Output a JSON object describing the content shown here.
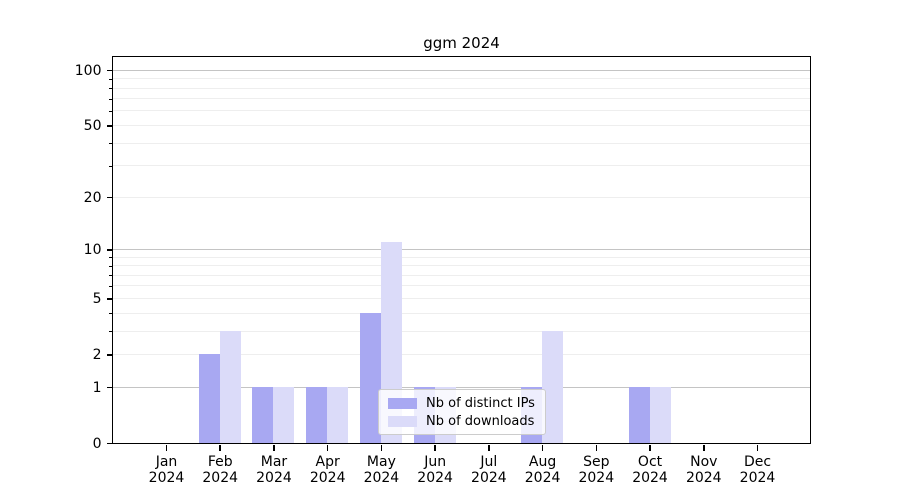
{
  "chart_data": {
    "type": "bar",
    "title": "ggm 2024",
    "x_tick_labels": [
      [
        "Jan",
        "2024"
      ],
      [
        "Feb",
        "2024"
      ],
      [
        "Mar",
        "2024"
      ],
      [
        "Apr",
        "2024"
      ],
      [
        "May",
        "2024"
      ],
      [
        "Jun",
        "2024"
      ],
      [
        "Jul",
        "2024"
      ],
      [
        "Aug",
        "2024"
      ],
      [
        "Sep",
        "2024"
      ],
      [
        "Oct",
        "2024"
      ],
      [
        "Nov",
        "2024"
      ],
      [
        "Dec",
        "2024"
      ]
    ],
    "series": [
      {
        "name": "Nb of distinct IPs",
        "color": "#a8a8f2",
        "values": [
          0,
          2,
          1,
          1,
          4,
          1,
          0,
          1,
          0,
          1,
          0,
          0
        ]
      },
      {
        "name": "Nb of downloads",
        "color": "#dbdbf9",
        "values": [
          0,
          3,
          1,
          1,
          11,
          1,
          0,
          3,
          0,
          1,
          0,
          0
        ]
      }
    ],
    "y_axis": {
      "scale": "log1p",
      "labeled_ticks": [
        0,
        1,
        2,
        5,
        10,
        20,
        50,
        100
      ],
      "major_gridlines": [
        1,
        10,
        100
      ],
      "minor_gridlines": [
        2,
        3,
        4,
        5,
        6,
        7,
        8,
        9,
        20,
        30,
        40,
        50,
        60,
        70,
        80,
        90
      ],
      "minor_axis_ticks": [
        3,
        4,
        6,
        7,
        8,
        9,
        30,
        40,
        60,
        70,
        80,
        90
      ],
      "ylim": [
        0,
        118
      ]
    },
    "grid": true,
    "legend_position": "bottom-center"
  },
  "colors": {
    "bar_distinct_ips": "#a8a8f2",
    "bar_downloads": "#dbdbf9",
    "grid_major": "#c4c4c4",
    "grid_minor": "#eeeeee",
    "axis": "#000000",
    "legend_border": "#cccccc"
  }
}
